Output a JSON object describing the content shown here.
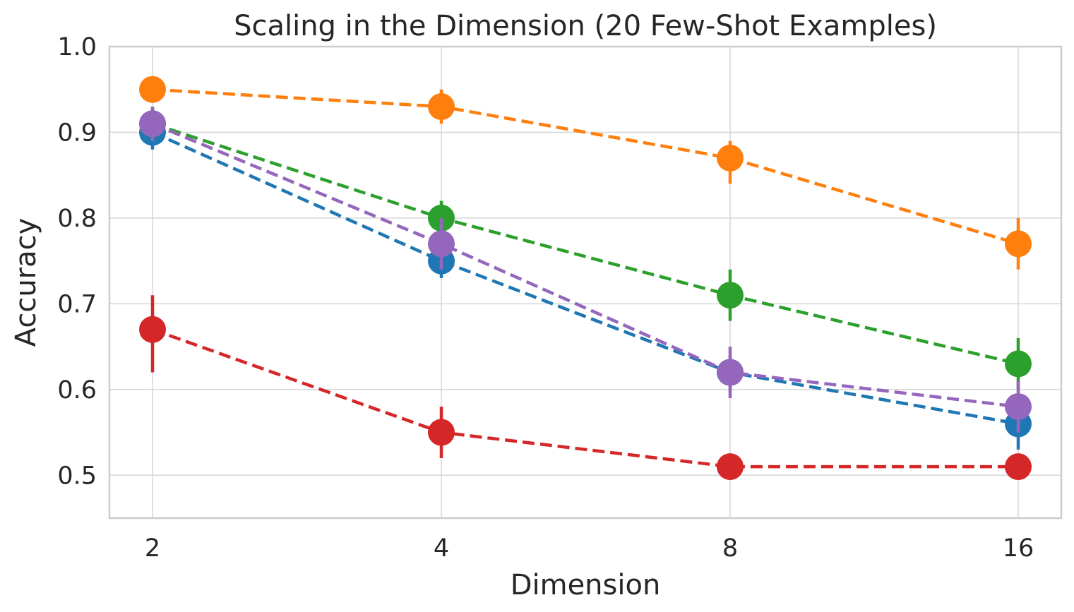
{
  "chart_data": {
    "type": "line",
    "title": "Scaling in the Dimension (20 Few-Shot Examples)",
    "xlabel": "Dimension",
    "ylabel": "Accuracy",
    "x": [
      2,
      4,
      8,
      16
    ],
    "x_tick_labels": [
      "2",
      "4",
      "8",
      "16"
    ],
    "x_scale": "log2",
    "ylim": [
      0.45,
      1.0
    ],
    "y_ticks": [
      0.5,
      0.6,
      0.7,
      0.8,
      0.9,
      1.0
    ],
    "y_tick_labels": [
      "0.5",
      "0.6",
      "0.7",
      "0.8",
      "0.9",
      "1.0"
    ],
    "grid": true,
    "legend": "none",
    "line_style": "dashed",
    "marker": "circle",
    "series": [
      {
        "color": "#1f77b4",
        "values": [
          0.9,
          0.75,
          0.62,
          0.56
        ],
        "err_low": [
          0.88,
          0.73,
          0.6,
          0.53
        ],
        "err_high": [
          0.92,
          0.77,
          0.64,
          0.59
        ]
      },
      {
        "color": "#ff7f0e",
        "values": [
          0.95,
          0.93,
          0.87,
          0.77
        ],
        "err_low": [
          0.94,
          0.91,
          0.84,
          0.74
        ],
        "err_high": [
          0.96,
          0.95,
          0.89,
          0.8
        ]
      },
      {
        "color": "#2ca02c",
        "values": [
          0.91,
          0.8,
          0.71,
          0.63
        ],
        "err_low": [
          0.89,
          0.78,
          0.68,
          0.6
        ],
        "err_high": [
          0.93,
          0.82,
          0.74,
          0.66
        ]
      },
      {
        "color": "#d62728",
        "values": [
          0.67,
          0.55,
          0.51,
          0.51
        ],
        "err_low": [
          0.62,
          0.52,
          0.5,
          0.5
        ],
        "err_high": [
          0.71,
          0.58,
          0.52,
          0.52
        ]
      },
      {
        "color": "#9467bd",
        "values": [
          0.91,
          0.77,
          0.62,
          0.58
        ],
        "err_low": [
          0.89,
          0.74,
          0.59,
          0.55
        ],
        "err_high": [
          0.93,
          0.8,
          0.65,
          0.61
        ]
      }
    ]
  }
}
